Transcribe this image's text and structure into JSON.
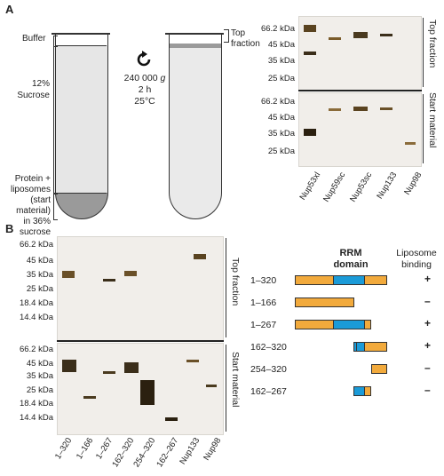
{
  "panelA": {
    "letter": "A",
    "tube": {
      "buffer": "Buffer",
      "sucrose": "12%\nSucrose",
      "protein": "Protein +\nliposomes\n(start material)\nin 36% sucrose",
      "top_fraction": "Top\nfraction",
      "centrifuge": "240 000",
      "g": "g",
      "time": "2 h",
      "temp": "25°C"
    },
    "markers": [
      "66.2 kDa",
      "45 kDa",
      "35 kDa",
      "25 kDa"
    ],
    "gel_top_label": "Top fraction",
    "gel_bottom_label": "Start material",
    "lanes": [
      "Nup53xl",
      "Nup59sc",
      "Nup53sc",
      "Nup133",
      "Nup98"
    ]
  },
  "panelB": {
    "letter": "B",
    "markers": [
      "66.2 kDa",
      "45 kDa",
      "35 kDa",
      "25 kDa",
      "18.4 kDa",
      "14.4 kDa"
    ],
    "gel_top_label": "Top fraction",
    "gel_bottom_label": "Start material",
    "lanes": [
      "1–320",
      "1–166",
      "1–267",
      "162–320",
      "254–320",
      "162–267",
      "Nup133",
      "Nup98"
    ],
    "domain_header": "RRM\ndomain",
    "binding_header": "Liposome\nbinding",
    "constructs": [
      {
        "label": "1–320",
        "binding": "+"
      },
      {
        "label": "1–166",
        "binding": "–"
      },
      {
        "label": "1–267",
        "binding": "+"
      },
      {
        "label": "162–320",
        "binding": "+"
      },
      {
        "label": "254–320",
        "binding": "–"
      },
      {
        "label": "162–267",
        "binding": "–"
      }
    ]
  },
  "colors": {
    "construct_orange": "#f2aa3c",
    "rrm_blue": "#1b9bd8"
  }
}
